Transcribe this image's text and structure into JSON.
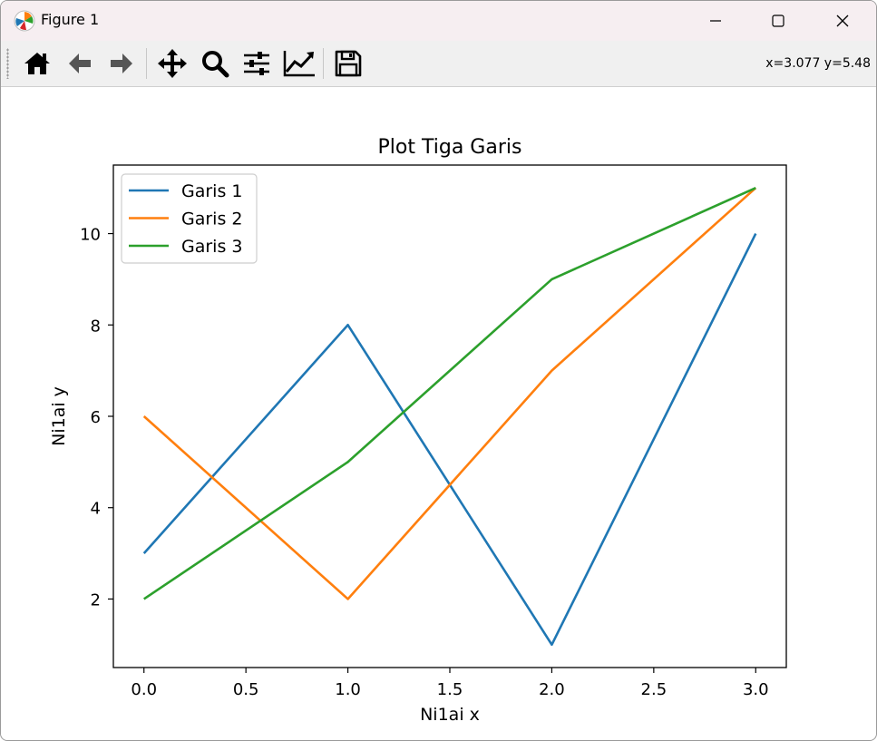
{
  "window": {
    "title": "Figure 1",
    "icon": "matplotlib-logo-icon"
  },
  "toolbar": {
    "buttons": [
      {
        "name": "home-icon"
      },
      {
        "name": "back-arrow-icon"
      },
      {
        "name": "forward-arrow-icon"
      },
      {
        "name": "pan-move-icon"
      },
      {
        "name": "zoom-magnifier-icon"
      },
      {
        "name": "configure-subplots-icon"
      },
      {
        "name": "edit-axes-icon"
      },
      {
        "name": "save-floppy-icon"
      }
    ],
    "coords": "x=3.077 y=5.48"
  },
  "chart_data": {
    "type": "line",
    "title": "Plot Tiga Garis",
    "xlabel": "Ni1ai x",
    "ylabel": "Ni1ai y",
    "xlim": [
      -0.15,
      3.15
    ],
    "ylim": [
      0.5,
      11.5
    ],
    "xticks": [
      0.0,
      0.5,
      1.0,
      1.5,
      2.0,
      2.5,
      3.0
    ],
    "xtick_labels": [
      "0.0",
      "0.5",
      "1.0",
      "1.5",
      "2.0",
      "2.5",
      "3.0"
    ],
    "yticks": [
      2,
      4,
      6,
      8,
      10
    ],
    "ytick_labels": [
      "2",
      "4",
      "6",
      "8",
      "10"
    ],
    "grid": false,
    "legend_position": "upper-left",
    "x": [
      0,
      1,
      2,
      3
    ],
    "series": [
      {
        "name": "Garis 1",
        "values": [
          3,
          8,
          1,
          10
        ],
        "color": "#1f77b4"
      },
      {
        "name": "Garis 2",
        "values": [
          6,
          2,
          7,
          11
        ],
        "color": "#ff7f0e"
      },
      {
        "name": "Garis 3",
        "values": [
          2,
          5,
          9,
          11
        ],
        "color": "#2ca02c"
      }
    ]
  }
}
